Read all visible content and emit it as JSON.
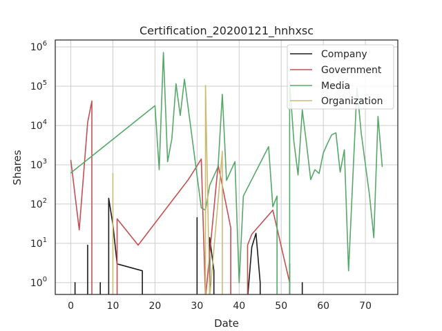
{
  "chart_data": {
    "type": "line",
    "title": "Certification_20200121_hnhxsc",
    "xlabel": "Date",
    "ylabel": "Shares",
    "yscale": "log",
    "xlim": [
      -3.7,
      77.7
    ],
    "ylim": [
      0.5,
      1500000
    ],
    "grid": true,
    "legend_position": "top-right",
    "x_ticks": [
      0,
      10,
      20,
      30,
      40,
      50,
      60,
      70
    ],
    "x_tick_labels": [
      "0",
      "10",
      "20",
      "30",
      "40",
      "50",
      "60",
      "70"
    ],
    "y_ticks": [
      1,
      10,
      100,
      1000,
      10000,
      100000,
      1000000
    ],
    "y_tick_labels": [
      {
        "base": "10",
        "exp": "0"
      },
      {
        "base": "10",
        "exp": "1"
      },
      {
        "base": "10",
        "exp": "2"
      },
      {
        "base": "10",
        "exp": "3"
      },
      {
        "base": "10",
        "exp": "4"
      },
      {
        "base": "10",
        "exp": "5"
      },
      {
        "base": "10",
        "exp": "6"
      }
    ],
    "series": [
      {
        "name": "Company",
        "color": "#1a1a1a",
        "points": [
          [
            1,
            0.4
          ],
          [
            1,
            1
          ],
          [
            1,
            0.4
          ],
          [
            4,
            0.4
          ],
          [
            4,
            9
          ],
          [
            4,
            0.4
          ],
          [
            7,
            0.4
          ],
          [
            7,
            1
          ],
          [
            7,
            0.4
          ],
          [
            9,
            0.4
          ],
          [
            9,
            140
          ],
          [
            10,
            30
          ],
          [
            11,
            3
          ],
          [
            17,
            2
          ],
          [
            17,
            0.4
          ],
          [
            30,
            0.4
          ],
          [
            30,
            45
          ],
          [
            30,
            0.4
          ],
          [
            33,
            0.4
          ],
          [
            33,
            14
          ],
          [
            34,
            2
          ],
          [
            34,
            0.4
          ],
          [
            42,
            0.4
          ],
          [
            43,
            8
          ],
          [
            44,
            18
          ],
          [
            45,
            1
          ],
          [
            45,
            0.4
          ],
          [
            52,
            0.4
          ],
          [
            52,
            3
          ],
          [
            52,
            0.4
          ],
          [
            55,
            0.4
          ],
          [
            55,
            1
          ],
          [
            55,
            0.4
          ]
        ]
      },
      {
        "name": "Government",
        "color": "#c44e52",
        "points": [
          [
            0,
            1300
          ],
          [
            2,
            22
          ],
          [
            4,
            12000
          ],
          [
            5,
            42000
          ],
          [
            5,
            0.4
          ],
          [
            11,
            0.4
          ],
          [
            11,
            42
          ],
          [
            16,
            9
          ],
          [
            28,
            430
          ],
          [
            31,
            1400
          ],
          [
            32,
            0.4
          ],
          [
            35,
            1000
          ],
          [
            38,
            25
          ],
          [
            38,
            0.4
          ],
          [
            42,
            0.4
          ],
          [
            42,
            9
          ],
          [
            43,
            17
          ],
          [
            48,
            70
          ],
          [
            52,
            1
          ]
        ]
      },
      {
        "name": "Media",
        "color": "#55a868",
        "points": [
          [
            0,
            620
          ],
          [
            20,
            32000
          ],
          [
            21,
            750
          ],
          [
            22,
            720000
          ],
          [
            23,
            1200
          ],
          [
            24,
            4500
          ],
          [
            25,
            115000
          ],
          [
            26,
            18000
          ],
          [
            27,
            150000
          ],
          [
            31,
            80
          ],
          [
            32,
            70
          ],
          [
            33,
            300
          ],
          [
            35,
            900
          ],
          [
            36,
            62000
          ],
          [
            37,
            400
          ],
          [
            39,
            1200
          ],
          [
            40,
            1
          ],
          [
            41,
            160
          ],
          [
            47,
            2900
          ],
          [
            48,
            85
          ],
          [
            49,
            160
          ],
          [
            49,
            0.4
          ],
          [
            52,
            0.4
          ],
          [
            52,
            130000
          ],
          [
            53,
            4000
          ],
          [
            54,
            550
          ],
          [
            55,
            25000
          ],
          [
            56,
            3500
          ],
          [
            57,
            420
          ],
          [
            58,
            750
          ],
          [
            59,
            600
          ],
          [
            60,
            2000
          ],
          [
            61,
            3500
          ],
          [
            62,
            5800
          ],
          [
            63,
            6500
          ],
          [
            64,
            650
          ],
          [
            65,
            2400
          ],
          [
            66,
            2
          ],
          [
            68,
            90000
          ],
          [
            69,
            6500
          ],
          [
            71,
            160
          ],
          [
            72,
            14
          ],
          [
            73,
            17000
          ],
          [
            74,
            900
          ]
        ]
      },
      {
        "name": "Organization",
        "color": "#ccb974",
        "points": [
          [
            10,
            0.4
          ],
          [
            10,
            600
          ],
          [
            10,
            0.4
          ],
          [
            32,
            0.4
          ],
          [
            32,
            105000
          ],
          [
            33,
            0.4
          ],
          [
            36,
            2200
          ],
          [
            36,
            0.4
          ]
        ]
      }
    ]
  }
}
